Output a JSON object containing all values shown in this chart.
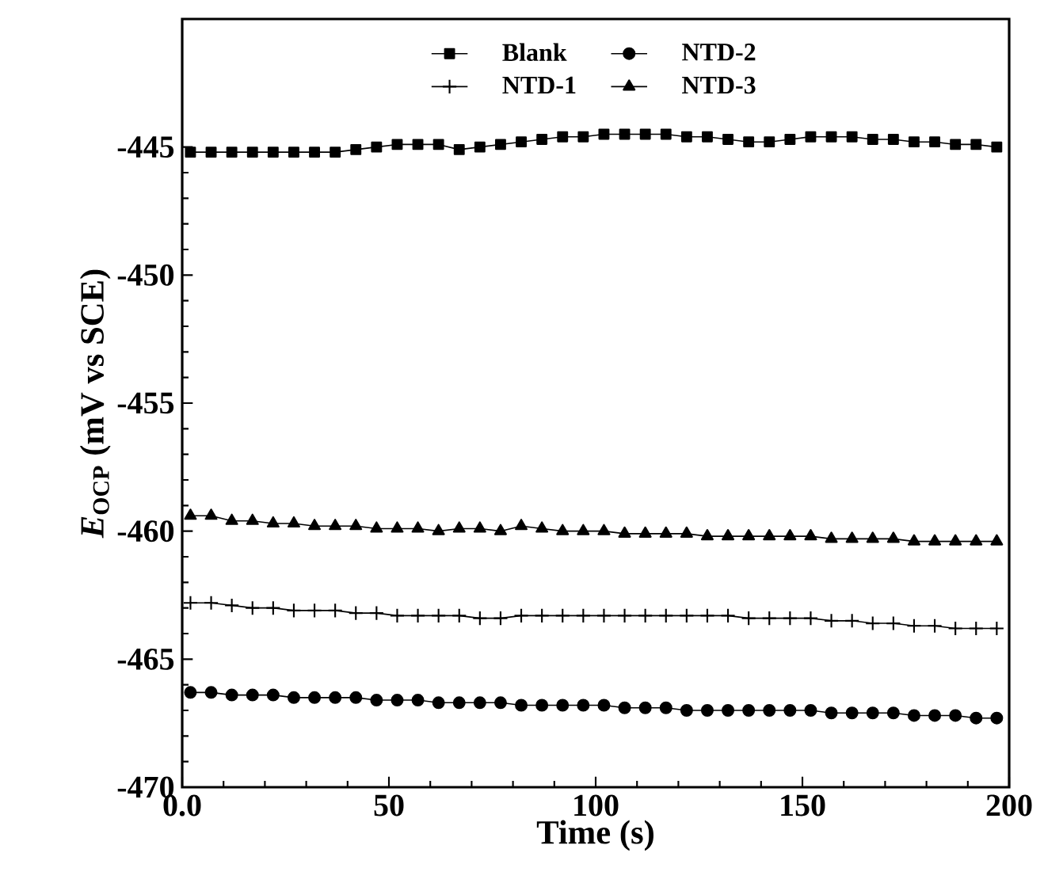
{
  "chart_data": {
    "type": "line",
    "xlabel": "Time (s)",
    "ylabel": "*E*$_{OCP}$ (mV vs SCE)",
    "x": [
      2,
      7,
      12,
      17,
      22,
      27,
      32,
      37,
      42,
      47,
      52,
      57,
      62,
      67,
      72,
      77,
      82,
      87,
      92,
      97,
      102,
      107,
      112,
      117,
      122,
      127,
      132,
      137,
      142,
      147,
      152,
      157,
      162,
      167,
      172,
      177,
      182,
      187,
      192,
      197
    ],
    "series": [
      {
        "name": "Blank",
        "color": "#000000",
        "marker": "square",
        "values": [
          -445.2,
          -445.2,
          -445.2,
          -445.2,
          -445.2,
          -445.2,
          -445.2,
          -445.2,
          -445.1,
          -445.0,
          -444.9,
          -444.9,
          -444.9,
          -445.1,
          -445.0,
          -444.9,
          -444.8,
          -444.7,
          -444.6,
          -444.6,
          -444.5,
          -444.5,
          -444.5,
          -444.5,
          -444.6,
          -444.6,
          -444.7,
          -444.8,
          -444.8,
          -444.7,
          -444.6,
          -444.6,
          -444.6,
          -444.7,
          -444.7,
          -444.8,
          -444.8,
          -444.9,
          -444.9,
          -445.0
        ]
      },
      {
        "name": "NTD-1",
        "color": "#000000",
        "marker": "cross",
        "values": [
          -462.8,
          -462.8,
          -462.9,
          -463.0,
          -463.0,
          -463.1,
          -463.1,
          -463.1,
          -463.2,
          -463.2,
          -463.3,
          -463.3,
          -463.3,
          -463.3,
          -463.4,
          -463.4,
          -463.3,
          -463.3,
          -463.3,
          -463.3,
          -463.3,
          -463.3,
          -463.3,
          -463.3,
          -463.3,
          -463.3,
          -463.3,
          -463.4,
          -463.4,
          -463.4,
          -463.4,
          -463.5,
          -463.5,
          -463.6,
          -463.6,
          -463.7,
          -463.7,
          -463.8,
          -463.8,
          -463.8
        ]
      },
      {
        "name": "NTD-2",
        "color": "#000000",
        "marker": "circle",
        "values": [
          -466.3,
          -466.3,
          -466.4,
          -466.4,
          -466.4,
          -466.5,
          -466.5,
          -466.5,
          -466.5,
          -466.6,
          -466.6,
          -466.6,
          -466.7,
          -466.7,
          -466.7,
          -466.7,
          -466.8,
          -466.8,
          -466.8,
          -466.8,
          -466.8,
          -466.9,
          -466.9,
          -466.9,
          -467.0,
          -467.0,
          -467.0,
          -467.0,
          -467.0,
          -467.0,
          -467.0,
          -467.1,
          -467.1,
          -467.1,
          -467.1,
          -467.2,
          -467.2,
          -467.2,
          -467.3,
          -467.3
        ]
      },
      {
        "name": "NTD-3",
        "color": "#000000",
        "marker": "triangle",
        "values": [
          -459.4,
          -459.4,
          -459.6,
          -459.6,
          -459.7,
          -459.7,
          -459.8,
          -459.8,
          -459.8,
          -459.9,
          -459.9,
          -459.9,
          -460.0,
          -459.9,
          -459.9,
          -460.0,
          -459.8,
          -459.9,
          -460.0,
          -460.0,
          -460.0,
          -460.1,
          -460.1,
          -460.1,
          -460.1,
          -460.2,
          -460.2,
          -460.2,
          -460.2,
          -460.2,
          -460.2,
          -460.3,
          -460.3,
          -460.3,
          -460.3,
          -460.4,
          -460.4,
          -460.4,
          -460.4,
          -460.4
        ]
      }
    ],
    "xlim": [
      0,
      200
    ],
    "ylim": [
      -470,
      -440
    ],
    "xticks": [
      {
        "value": 0,
        "label": "0.0"
      },
      50,
      100,
      150,
      200
    ],
    "yticks": [
      -470,
      -465,
      -460,
      -455,
      -450,
      -445
    ],
    "grid": false,
    "legend": "top",
    "line_style": "solid"
  }
}
